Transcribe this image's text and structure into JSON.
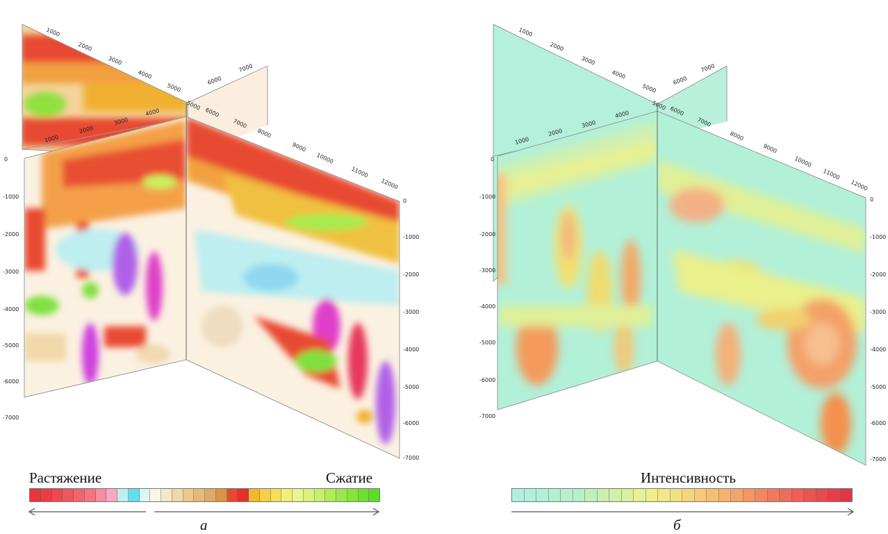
{
  "figure_a": {
    "left_label": "Растяжение",
    "right_label": "Сжатие",
    "letter": "а",
    "top_axis_ticks": [
      "1000",
      "2000",
      "3000",
      "4000",
      "5000",
      "6000",
      "7000"
    ],
    "mid_axis_ticks": [
      "1000",
      "2000",
      "3000",
      "4000",
      "5000",
      "6000",
      "7000",
      "8000"
    ],
    "right_axis_ticks": [
      "9000",
      "10000",
      "11000",
      "12000"
    ],
    "depth_ticks_left": [
      "0",
      "-1000",
      "-2000",
      "-3000",
      "-4000",
      "-5000",
      "-6000",
      "-7000"
    ],
    "depth_ticks_right": [
      "0",
      "-1000",
      "-2000",
      "-3000",
      "-4000",
      "-5000",
      "-6000",
      "-7000"
    ],
    "scale_colors": [
      "#e8353a",
      "#ea3d45",
      "#ec4a4e",
      "#ee5660",
      "#f0646e",
      "#f27480",
      "#f58ea0",
      "#f6aac0",
      "#bdeff0",
      "#5fe0ee",
      "#dbf7f5",
      "#fbf5ea",
      "#f5e6c8",
      "#efd7a8",
      "#eac88e",
      "#e6b978",
      "#e1a863",
      "#d6934a",
      "#e84830",
      "#e6302a",
      "#f0b830",
      "#f5d040",
      "#f3e058",
      "#eef07a",
      "#e8f58a",
      "#d9f27a",
      "#c8ef6a",
      "#b2ec5a",
      "#9be84a",
      "#84e43a",
      "#6fe030",
      "#5cdc28"
    ]
  },
  "figure_b": {
    "label": "Интенсивность",
    "letter": "б",
    "top_axis_ticks": [
      "1000",
      "2000",
      "3000",
      "4000",
      "5000",
      "6000",
      "7000"
    ],
    "mid_axis_ticks": [
      "1000",
      "2000",
      "3000",
      "4000",
      "5000",
      "6000",
      "7000",
      "8000"
    ],
    "right_axis_ticks": [
      "9000",
      "10000",
      "11000",
      "12000"
    ],
    "depth_ticks_left": [
      "0",
      "-1000",
      "-2000",
      "-3000",
      "-4000",
      "-5000",
      "-6000",
      "-7000"
    ],
    "depth_ticks_right": [
      "0",
      "-1000",
      "-2000",
      "-3000",
      "-4000",
      "-5000",
      "-6000",
      "-7000"
    ],
    "scale_colors": [
      "#aef0e0",
      "#aef0de",
      "#b0f0da",
      "#b2f0d4",
      "#b6f0ce",
      "#baf0c6",
      "#c0f0bc",
      "#c8f0b2",
      "#d2f0a8",
      "#dcf09e",
      "#e6f096",
      "#eeee8e",
      "#f2e888",
      "#f4e082",
      "#f6d67c",
      "#f6ca76",
      "#f6be70",
      "#f6b26c",
      "#f4a468",
      "#f49664",
      "#f28862",
      "#f07a5e",
      "#ee6c5a",
      "#ec6056",
      "#ea5452",
      "#e8484e",
      "#e63e4a",
      "#e43446"
    ]
  }
}
